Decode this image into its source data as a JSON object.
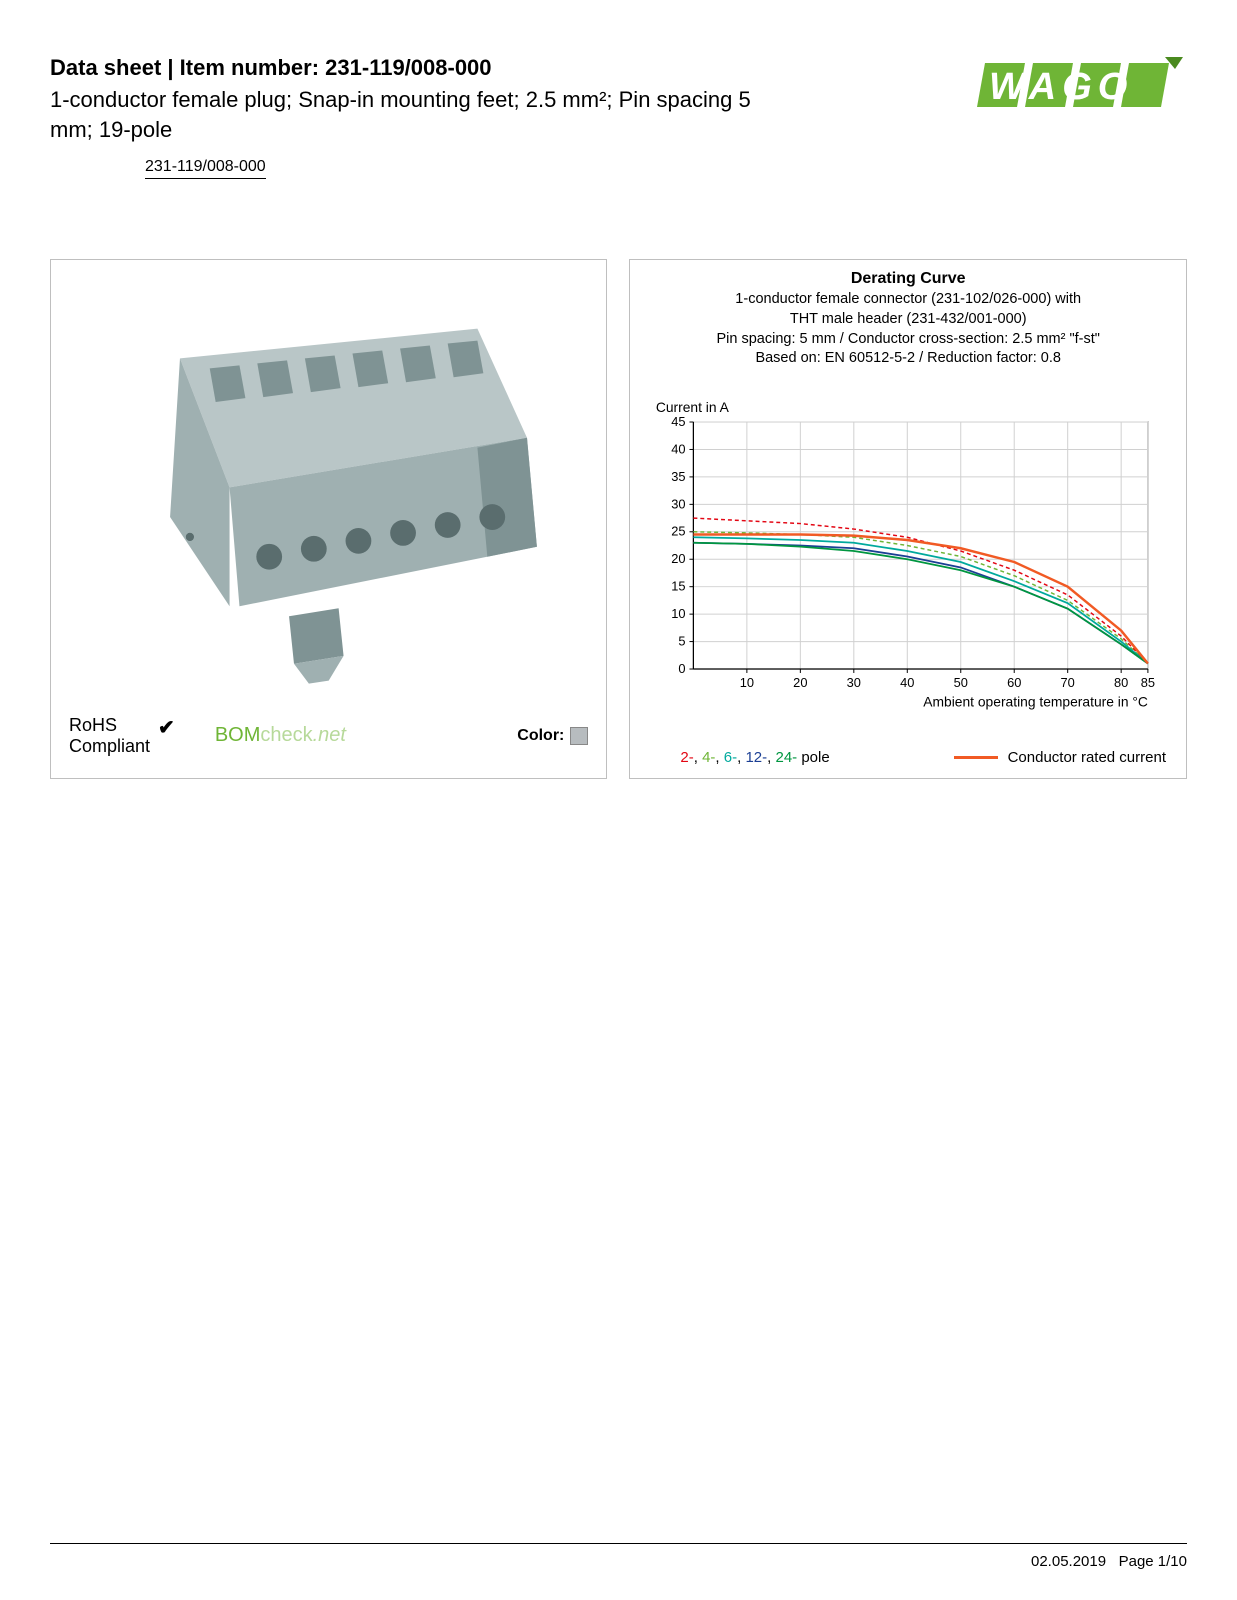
{
  "header": {
    "title_prefix": "Data sheet",
    "title_separator": "  |  ",
    "title_label": "Item number:",
    "item_number": "231-119/008-000",
    "subtitle": "1-conductor female plug; Snap-in mounting feet; 2.5 mm²; Pin spacing 5 mm; 19-pole",
    "item_code": "231-119/008-000"
  },
  "logo": {
    "text": "WAGO",
    "fill": "#6fb536",
    "accent": "#4a8a1f"
  },
  "product_render": {
    "body_color": "#9fb0b1",
    "body_shadow": "#7f9394",
    "body_highlight": "#b9c6c7",
    "hole_color": "#5a6d6e"
  },
  "product_footer": {
    "rohs_line1": "RoHS",
    "rohs_line2": "Compliant",
    "check_mark": "✔",
    "bom_main": "BOM",
    "bom_check": "check",
    "bom_net": ".net",
    "color_label": "Color:",
    "swatch_color": "#b7bcbf"
  },
  "chart": {
    "title": "Derating Curve",
    "sub1": "1-conductor female connector (231-102/026-000) with",
    "sub2": "THT male header (231-432/001-000)",
    "sub3": "Pin spacing: 5 mm / Conductor cross-section: 2.5 mm² \"f-st\"",
    "sub4": "Based on: EN 60512-5-2 / Reduction factor: 0.8",
    "y_label": "Current in A",
    "x_label": "Ambient operating temperature in °C",
    "y_ticks": [
      0,
      5,
      10,
      15,
      20,
      25,
      30,
      35,
      40,
      45
    ],
    "x_ticks": [
      10,
      20,
      30,
      40,
      50,
      60,
      70,
      80,
      85
    ],
    "x_min": 0,
    "x_max": 85,
    "y_min": 0,
    "y_max": 45,
    "grid_color": "#d0d0d0",
    "axis_color": "#000000",
    "plot_bg": "#ffffff",
    "series": [
      {
        "name": "2-pole",
        "color": "#e30613",
        "dash": "4,3",
        "width": 1.5,
        "points": [
          [
            0,
            27.5
          ],
          [
            10,
            27
          ],
          [
            20,
            26.5
          ],
          [
            30,
            25.5
          ],
          [
            40,
            24
          ],
          [
            50,
            21.5
          ],
          [
            60,
            18
          ],
          [
            70,
            13.5
          ],
          [
            80,
            6
          ],
          [
            85,
            1
          ]
        ]
      },
      {
        "name": "4-pole",
        "color": "#6fb536",
        "dash": "4,3",
        "width": 1.5,
        "points": [
          [
            0,
            25
          ],
          [
            10,
            24.8
          ],
          [
            20,
            24.5
          ],
          [
            30,
            24
          ],
          [
            40,
            22.5
          ],
          [
            50,
            20.5
          ],
          [
            60,
            17
          ],
          [
            70,
            12.5
          ],
          [
            80,
            5.5
          ],
          [
            85,
            1
          ]
        ]
      },
      {
        "name": "6-pole",
        "color": "#00a99d",
        "dash": "none",
        "width": 1.8,
        "points": [
          [
            0,
            24
          ],
          [
            10,
            23.8
          ],
          [
            20,
            23.5
          ],
          [
            30,
            23
          ],
          [
            40,
            21.5
          ],
          [
            50,
            19.5
          ],
          [
            60,
            16
          ],
          [
            70,
            12
          ],
          [
            80,
            5
          ],
          [
            85,
            1
          ]
        ]
      },
      {
        "name": "12-pole",
        "color": "#1b3f94",
        "dash": "none",
        "width": 1.8,
        "points": [
          [
            0,
            23
          ],
          [
            10,
            22.8
          ],
          [
            20,
            22.5
          ],
          [
            30,
            22
          ],
          [
            40,
            20.5
          ],
          [
            50,
            18.5
          ],
          [
            60,
            15
          ],
          [
            70,
            11
          ],
          [
            80,
            4.5
          ],
          [
            85,
            1
          ]
        ]
      },
      {
        "name": "24-pole",
        "color": "#009640",
        "dash": "none",
        "width": 1.8,
        "points": [
          [
            0,
            23
          ],
          [
            10,
            22.8
          ],
          [
            20,
            22.3
          ],
          [
            30,
            21.5
          ],
          [
            40,
            20
          ],
          [
            50,
            18
          ],
          [
            60,
            15
          ],
          [
            70,
            11
          ],
          [
            80,
            4.5
          ],
          [
            85,
            1
          ]
        ]
      },
      {
        "name": "rated",
        "color": "#f15a24",
        "dash": "none",
        "width": 2.5,
        "points": [
          [
            0,
            24.5
          ],
          [
            10,
            24.5
          ],
          [
            20,
            24.5
          ],
          [
            30,
            24.3
          ],
          [
            40,
            23.5
          ],
          [
            50,
            22
          ],
          [
            60,
            19.5
          ],
          [
            70,
            15
          ],
          [
            80,
            7
          ],
          [
            85,
            1
          ]
        ]
      }
    ],
    "legend_poles": [
      {
        "text": "2-",
        "color": "#e30613"
      },
      {
        "text": "4-",
        "color": "#6fb536"
      },
      {
        "text": "6-",
        "color": "#00a99d"
      },
      {
        "text": "12-",
        "color": "#1b3f94"
      },
      {
        "text": "24-",
        "color": "#009640"
      }
    ],
    "legend_poles_suffix": "pole",
    "legend_conductor": "Conductor rated current",
    "legend_conductor_color": "#f15a24"
  },
  "footer": {
    "date": "02.05.2019",
    "page": "Page 1/10"
  }
}
